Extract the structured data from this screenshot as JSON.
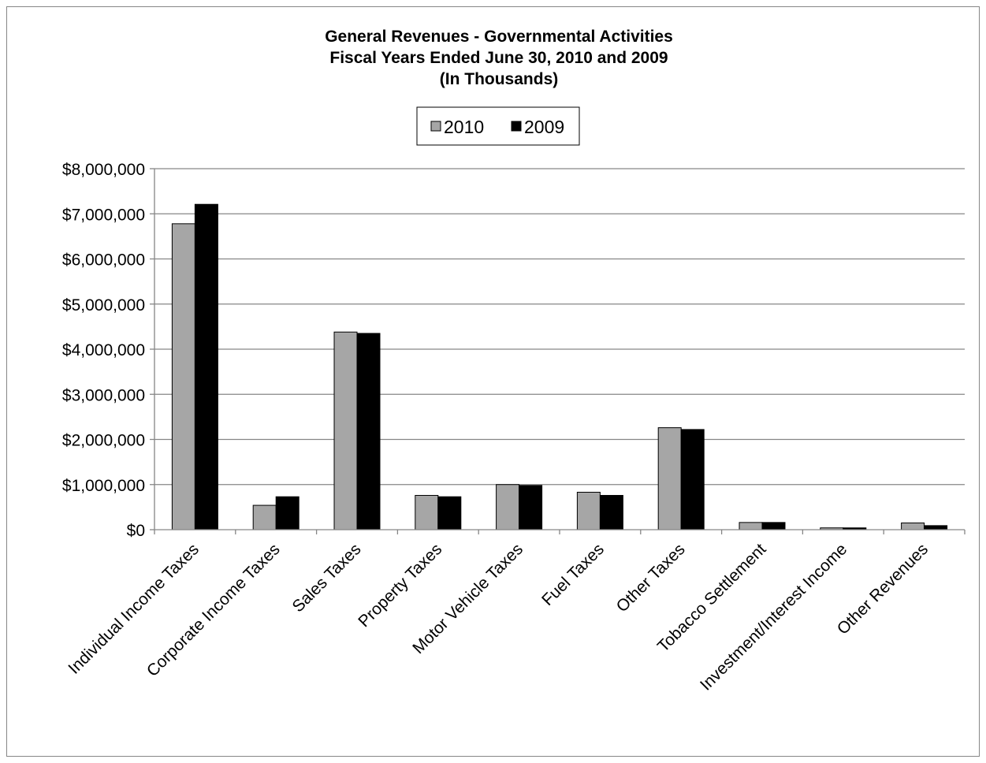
{
  "chart_data": {
    "type": "bar",
    "title": "General Revenues - Governmental Activities",
    "subtitle_lines": [
      "Fiscal Years Ended June 30, 2010 and 2009",
      "(In Thousands)"
    ],
    "xlabel": "",
    "ylabel": "",
    "ylim": [
      0,
      8000000
    ],
    "y_ticks": [
      0,
      1000000,
      2000000,
      3000000,
      4000000,
      5000000,
      6000000,
      7000000,
      8000000
    ],
    "y_tick_labels": [
      "$0",
      "$1,000,000",
      "$2,000,000",
      "$3,000,000",
      "$4,000,000",
      "$5,000,000",
      "$6,000,000",
      "$7,000,000",
      "$8,000,000"
    ],
    "grid": "horizontal",
    "legend": "top-center",
    "categories": [
      "Individual Income Taxes",
      "Corporate Income Taxes",
      "Sales Taxes",
      "Property Taxes",
      "Motor Vehicle Taxes",
      "Fuel Taxes",
      "Other Taxes",
      "Tobacco Settlement",
      "Investment/Interest Income",
      "Other Revenues"
    ],
    "series": [
      {
        "name": "2010",
        "color": "#a6a6a6",
        "values": [
          6780000,
          540000,
          4380000,
          760000,
          1000000,
          830000,
          2260000,
          160000,
          40000,
          150000
        ]
      },
      {
        "name": "2009",
        "color": "#000000",
        "values": [
          7210000,
          730000,
          4350000,
          730000,
          980000,
          760000,
          2220000,
          160000,
          40000,
          90000
        ]
      }
    ]
  }
}
